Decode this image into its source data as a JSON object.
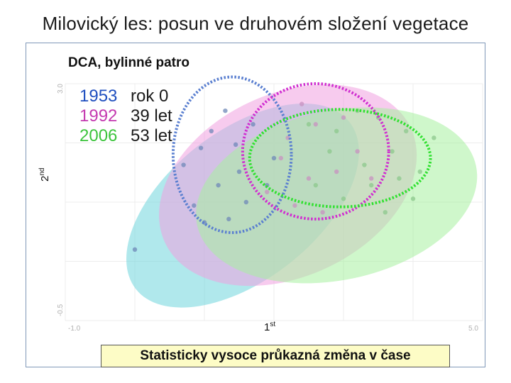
{
  "page": {
    "title": "Milovický les: posun ve druhovém složení vegetace",
    "subtitle": "DCA, bylinné patro",
    "note": "Statisticky vysoce průkazná změna v čase"
  },
  "legend": [
    {
      "year": "1953",
      "desc": "rok 0",
      "color": "#1f4fbf"
    },
    {
      "year": "1992",
      "desc": "39 let",
      "color": "#c43ab0"
    },
    {
      "year": "2006",
      "desc": "53 let",
      "color": "#3cc43c"
    }
  ],
  "colors": {
    "frame": "#7f98b8",
    "ellipse_1953": "#6fd6dc",
    "ellipse_1992": "#f0a0e0",
    "ellipse_2006": "#a8f0a0",
    "ring_1953": "#5a7fd0",
    "ring_1992": "#d02ed0",
    "ring_2006": "#30e030"
  },
  "chart_data": {
    "type": "scatter",
    "title": "DCA, bylinné patro",
    "xlabel": {
      "base": "1",
      "sup": "st"
    },
    "ylabel": {
      "base": "2",
      "sup": "nd"
    },
    "x_ticks": [
      "-1.0",
      "5.0"
    ],
    "y_ticks": [
      "3.0",
      "-0.5"
    ],
    "xlim": [
      -1.0,
      5.0
    ],
    "ylim": [
      -0.5,
      3.0
    ],
    "grid": true,
    "legend_position": "top-left",
    "series": [
      {
        "name": "1953",
        "spread_ellipse": {
          "cx": 1.55,
          "cy": 1.2,
          "rx": 1.95,
          "ry": 1.1,
          "angle": -38
        },
        "centroid_ellipse": {
          "cx": 1.4,
          "cy": 1.95,
          "rx": 0.85,
          "ry": 1.15
        },
        "points": [
          [
            0.95,
            2.05
          ],
          [
            1.2,
            1.5
          ],
          [
            1.5,
            1.7
          ],
          [
            1.1,
            2.3
          ],
          [
            0.7,
            1.8
          ],
          [
            1.35,
            1.0
          ],
          [
            1.7,
            2.4
          ],
          [
            0.85,
            1.2
          ],
          [
            1.6,
            1.25
          ],
          [
            2.0,
            1.9
          ],
          [
            1.3,
            2.6
          ],
          [
            1.0,
            0.95
          ],
          [
            0.0,
            0.55
          ],
          [
            1.9,
            1.5
          ],
          [
            1.45,
            2.1
          ]
        ]
      },
      {
        "name": "1992",
        "spread_ellipse": {
          "cx": 2.2,
          "cy": 1.5,
          "rx": 1.95,
          "ry": 1.35,
          "angle": -25
        },
        "centroid_ellipse": {
          "cx": 2.6,
          "cy": 2.0,
          "rx": 1.05,
          "ry": 1.0
        },
        "points": [
          [
            2.1,
            1.9
          ],
          [
            2.6,
            2.4
          ],
          [
            2.9,
            1.7
          ],
          [
            2.3,
            1.2
          ],
          [
            3.0,
            2.5
          ],
          [
            2.4,
            2.7
          ],
          [
            1.9,
            1.4
          ],
          [
            3.2,
            2.0
          ],
          [
            2.7,
            1.1
          ],
          [
            2.2,
            2.2
          ],
          [
            3.4,
            1.6
          ],
          [
            2.5,
            1.6
          ]
        ]
      },
      {
        "name": "2006",
        "spread_ellipse": {
          "cx": 2.9,
          "cy": 1.35,
          "rx": 2.05,
          "ry": 1.25,
          "angle": -12
        },
        "centroid_ellipse": {
          "cx": 2.95,
          "cy": 1.9,
          "rx": 1.3,
          "ry": 0.72
        },
        "points": [
          [
            2.9,
            2.3
          ],
          [
            3.3,
            1.8
          ],
          [
            3.7,
            2.0
          ],
          [
            2.6,
            1.5
          ],
          [
            3.5,
            2.5
          ],
          [
            4.1,
            1.7
          ],
          [
            3.0,
            1.3
          ],
          [
            3.9,
            2.3
          ],
          [
            2.8,
            2.0
          ],
          [
            4.3,
            2.2
          ],
          [
            3.4,
            1.5
          ],
          [
            3.6,
            1.1
          ],
          [
            2.5,
            2.4
          ],
          [
            4.0,
            1.3
          ],
          [
            3.2,
            2.6
          ],
          [
            3.8,
            1.6
          ]
        ]
      }
    ]
  }
}
